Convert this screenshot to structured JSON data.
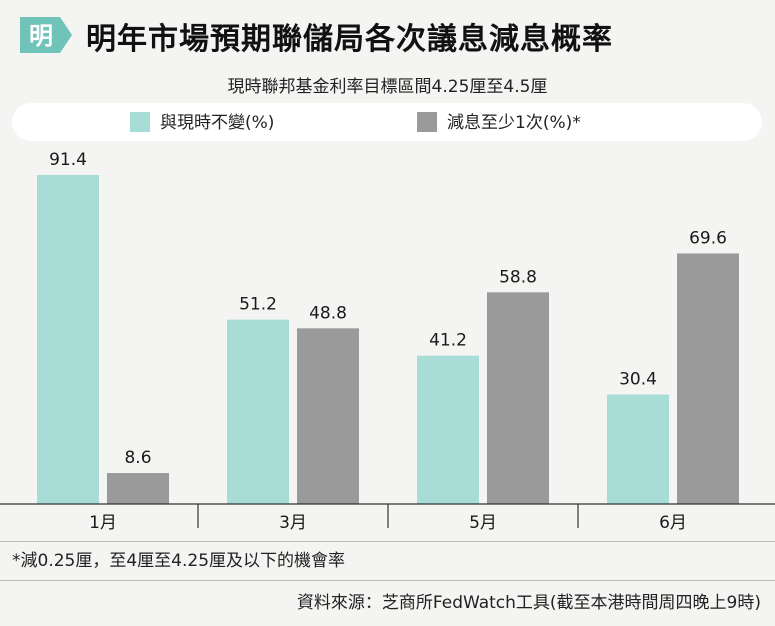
{
  "header": {
    "logo_char": "明",
    "title": "明年市場預期聯儲局各次議息減息概率"
  },
  "subtitle": "現時聯邦基金利率目標區間4.25厘至4.5厘",
  "colors": {
    "unchanged": "#a8dcd6",
    "cut": "#9a9a9a",
    "logo_bg": "#6fc3b8"
  },
  "chart_data": {
    "type": "bar",
    "categories": [
      "1月",
      "3月",
      "5月",
      "6月"
    ],
    "series": [
      {
        "name": "與現時不變(%)",
        "values": [
          91.4,
          51.2,
          41.2,
          30.4
        ]
      },
      {
        "name": "減息至少1次(%)*",
        "values": [
          8.6,
          48.8,
          58.8,
          69.6
        ]
      }
    ],
    "value_labels": [
      [
        "91.4",
        "51.2",
        "41.2",
        "30.4"
      ],
      [
        "8.6",
        "48.8",
        "58.8",
        "69.6"
      ]
    ],
    "ylim": [
      0,
      100
    ],
    "grid": false,
    "legend_position": "top"
  },
  "footnote": "*減0.25厘，至4厘至4.25厘及以下的機會率",
  "source": "資料來源：芝商所FedWatch工具(截至本港時間周四晚上9時)"
}
